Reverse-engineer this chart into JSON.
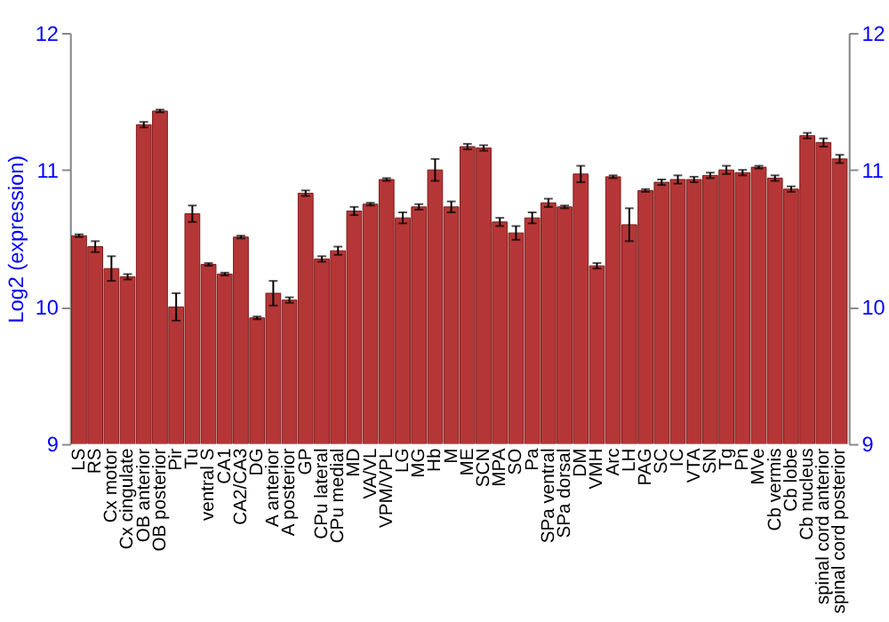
{
  "chart_data": {
    "type": "bar",
    "ylabel": "Log2 (expression)",
    "categories": [
      "LS",
      "RS",
      "Cx motor",
      "Cx cingulate",
      "OB anterior",
      "OB posterior",
      "Pir",
      "Tu",
      "ventral S",
      "CA1",
      "CA2/CA3",
      "DG",
      "A anterior",
      "A posterior",
      "GP",
      "CPu lateral",
      "CPu medial",
      "MD",
      "VA/VL",
      "VPM/VPL",
      "LG",
      "MG",
      "Hb",
      "M",
      "ME",
      "SCN",
      "MPA",
      "SO",
      "Pa",
      "SPa ventral",
      "SPa dorsal",
      "DM",
      "VMH",
      "Arc",
      "LH",
      "PAG",
      "SC",
      "IC",
      "VTA",
      "SN",
      "Tg",
      "Pn",
      "MVe",
      "Cb vermis",
      "Cb lobe",
      "Cb nucleus",
      "spinal cord anterior",
      "spinal cord posterior"
    ],
    "values": [
      10.52,
      10.44,
      10.28,
      10.22,
      11.33,
      11.43,
      10.0,
      10.68,
      10.31,
      10.24,
      10.51,
      9.92,
      10.1,
      10.05,
      10.83,
      10.35,
      10.41,
      10.7,
      10.75,
      10.93,
      10.65,
      10.73,
      11.0,
      10.73,
      11.17,
      11.16,
      10.62,
      10.54,
      10.65,
      10.76,
      10.73,
      10.97,
      10.3,
      10.95,
      10.6,
      10.85,
      10.91,
      10.93,
      10.93,
      10.96,
      11.0,
      10.98,
      11.02,
      10.94,
      10.86,
      11.25,
      11.2,
      11.08
    ],
    "errors": [
      0.01,
      0.04,
      0.09,
      0.02,
      0.02,
      0.01,
      0.1,
      0.06,
      0.01,
      0.01,
      0.01,
      0.01,
      0.09,
      0.02,
      0.02,
      0.02,
      0.03,
      0.03,
      0.01,
      0.01,
      0.04,
      0.02,
      0.08,
      0.04,
      0.02,
      0.02,
      0.03,
      0.05,
      0.04,
      0.03,
      0.01,
      0.06,
      0.02,
      0.01,
      0.12,
      0.01,
      0.02,
      0.03,
      0.02,
      0.02,
      0.03,
      0.02,
      0.01,
      0.02,
      0.02,
      0.02,
      0.03,
      0.03
    ],
    "color": "#b53636",
    "ylim": [
      9,
      12
    ],
    "yticks": [
      9,
      10,
      11,
      12
    ],
    "y2lim": [
      9,
      12
    ],
    "y2ticks": [
      9,
      10,
      11,
      12
    ],
    "grid": "y"
  }
}
